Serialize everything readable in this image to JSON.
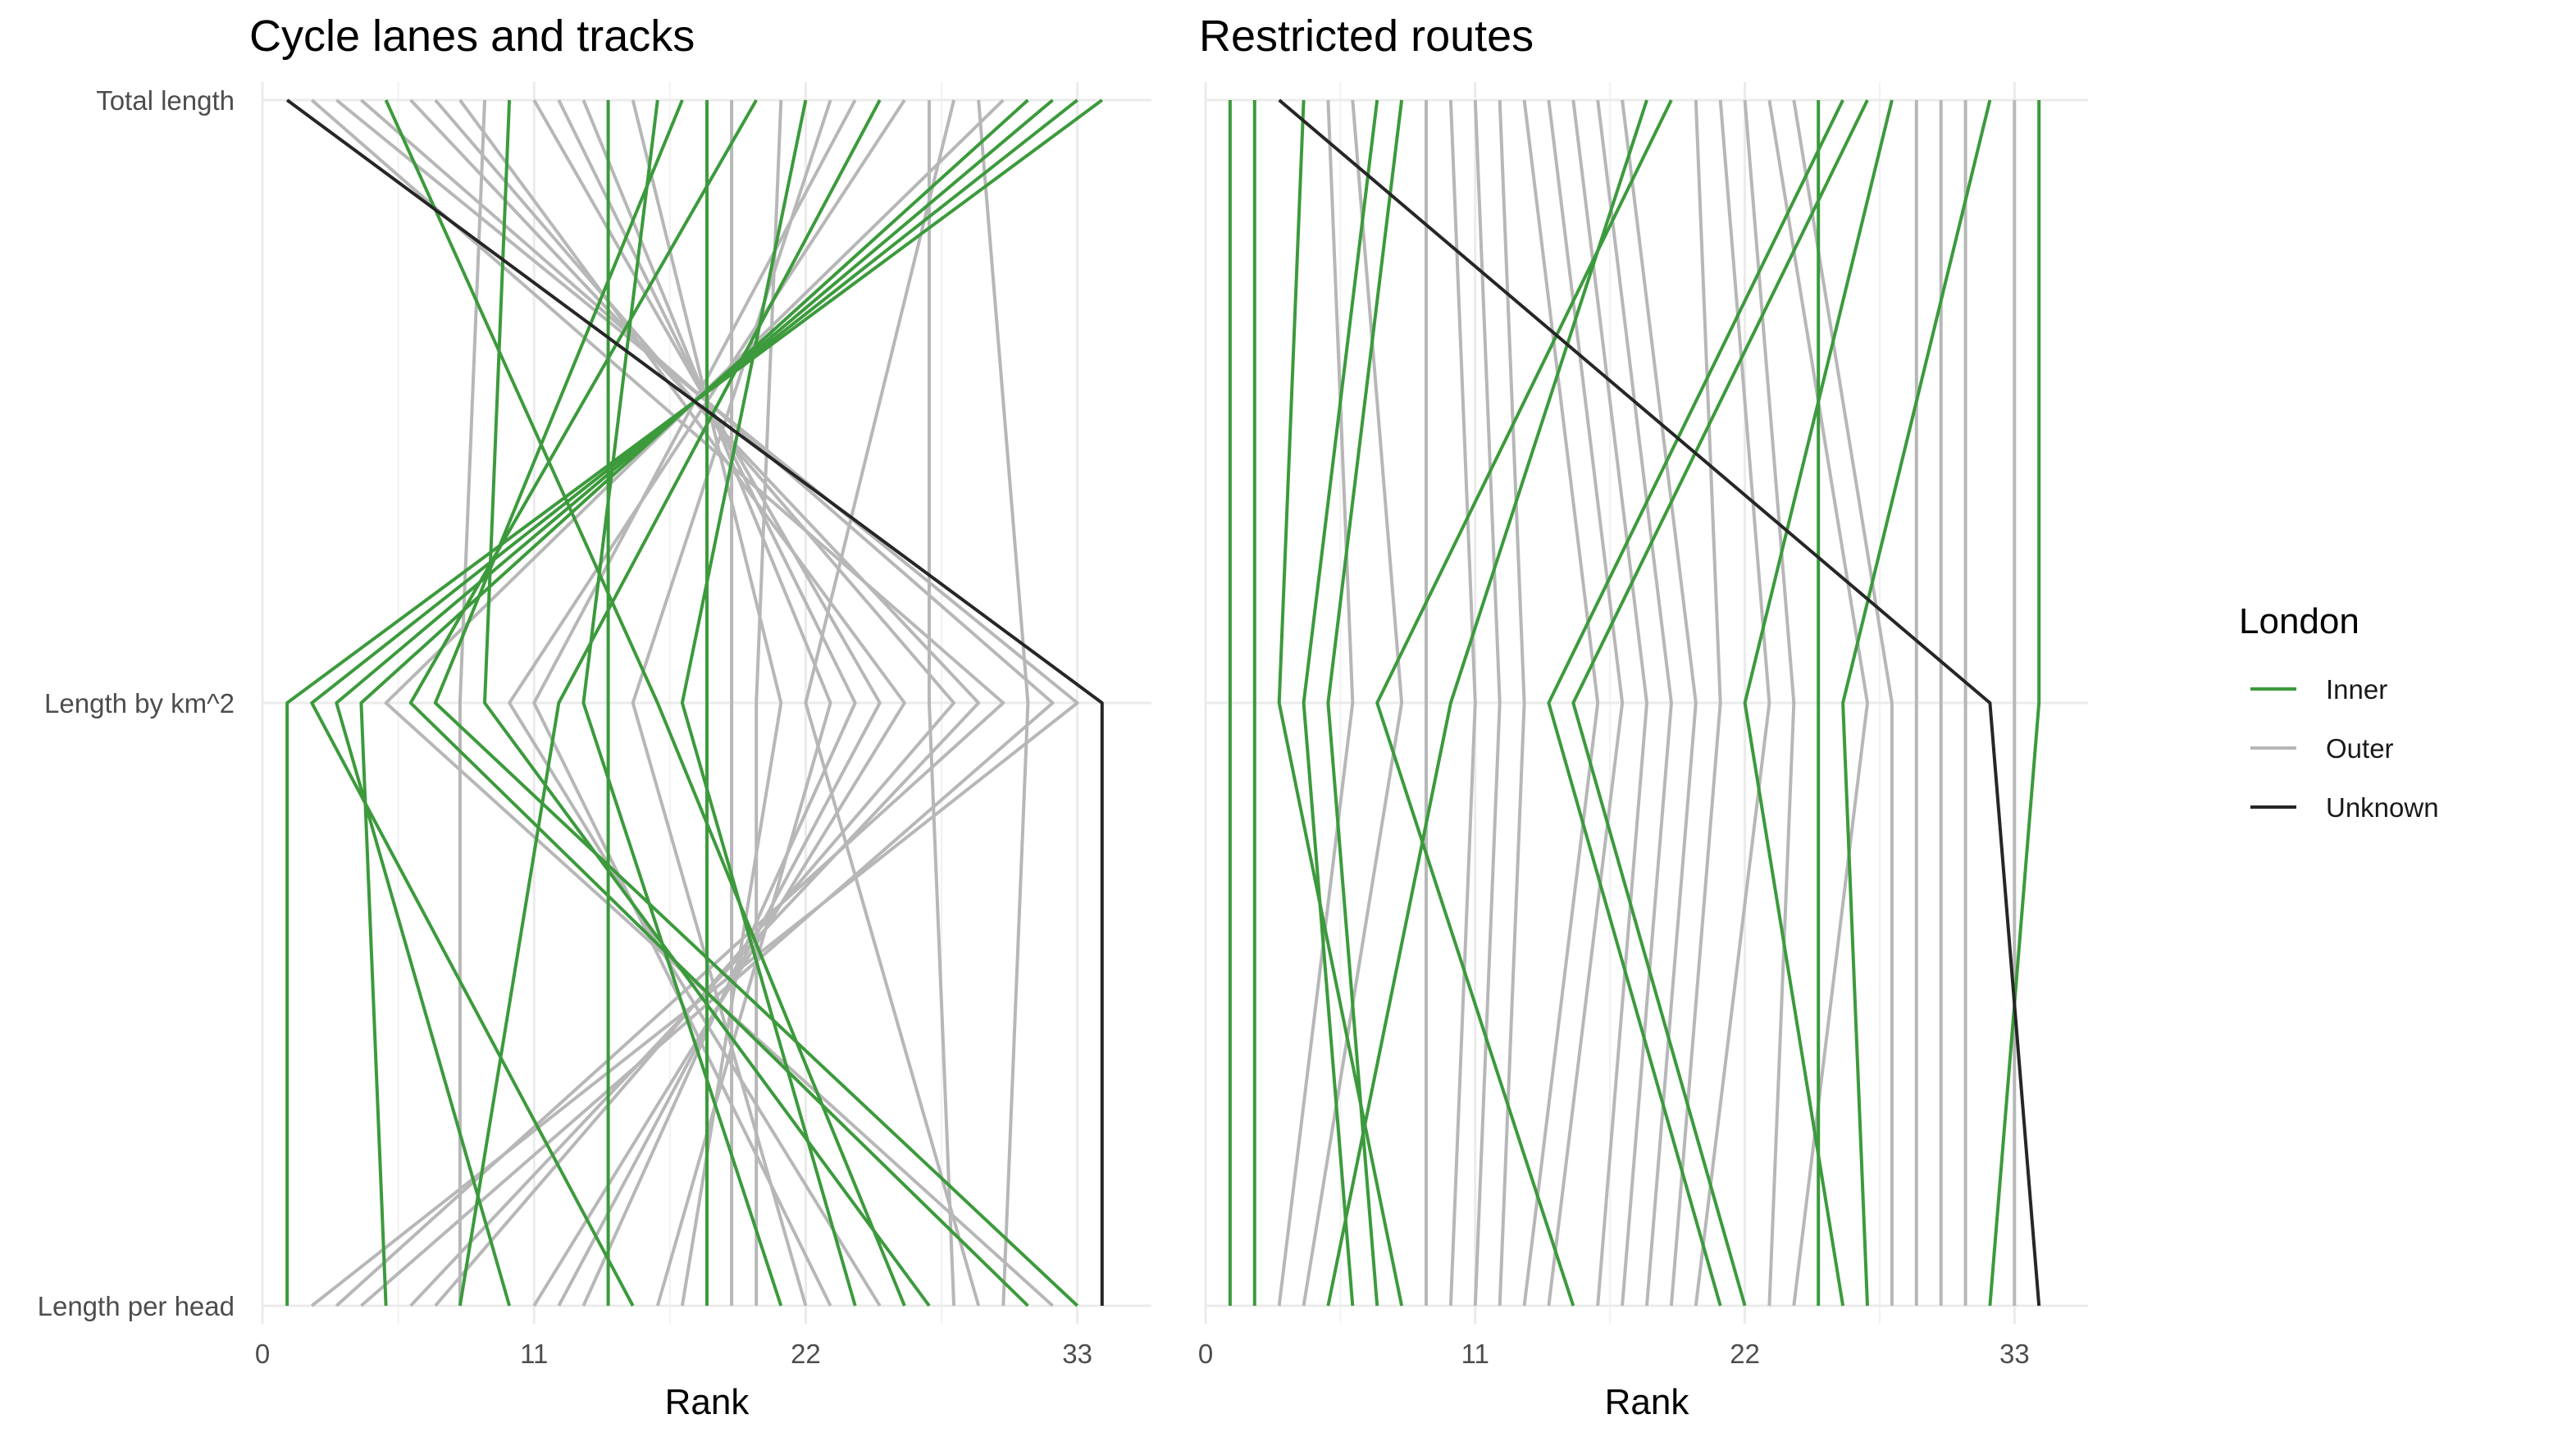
{
  "chart_data": [
    {
      "type": "line",
      "title": "Cycle lanes and tracks",
      "xlabel": "Rank",
      "ylabel": "",
      "xlim": [
        0,
        36
      ],
      "x_ticks": [
        0,
        11,
        22,
        33
      ],
      "categories": [
        "Total length",
        "Length by km^2",
        "Length per head"
      ],
      "grid": true,
      "series": [
        {
          "group": "Unknown",
          "values": [
            1,
            34,
            34
          ]
        },
        {
          "group": "Inner",
          "values": [
            34,
            1,
            1
          ]
        },
        {
          "group": "Inner",
          "values": [
            33,
            2,
            15
          ]
        },
        {
          "group": "Inner",
          "values": [
            32,
            3,
            10
          ]
        },
        {
          "group": "Inner",
          "values": [
            31,
            4,
            5
          ]
        },
        {
          "group": "Inner",
          "values": [
            20,
            6,
            31
          ]
        },
        {
          "group": "Inner",
          "values": [
            17,
            7,
            33
          ]
        },
        {
          "group": "Inner",
          "values": [
            10,
            9,
            27
          ]
        },
        {
          "group": "Inner",
          "values": [
            25,
            12,
            8
          ]
        },
        {
          "group": "Inner",
          "values": [
            16,
            13,
            21
          ]
        },
        {
          "group": "Inner",
          "values": [
            5,
            16,
            26
          ]
        },
        {
          "group": "Inner",
          "values": [
            22,
            17,
            24
          ]
        },
        {
          "group": "Inner",
          "values": [
            18,
            18,
            18
          ]
        },
        {
          "group": "Inner",
          "values": [
            14,
            14,
            14
          ]
        },
        {
          "group": "Outer",
          "values": [
            3,
            33,
            2
          ]
        },
        {
          "group": "Outer",
          "values": [
            2,
            30,
            3
          ]
        },
        {
          "group": "Outer",
          "values": [
            4,
            32,
            4
          ]
        },
        {
          "group": "Outer",
          "values": [
            6,
            29,
            6
          ]
        },
        {
          "group": "Outer",
          "values": [
            7,
            28,
            7
          ]
        },
        {
          "group": "Outer",
          "values": [
            8,
            26,
            11
          ]
        },
        {
          "group": "Outer",
          "values": [
            9,
            8,
            8
          ]
        },
        {
          "group": "Outer",
          "values": [
            11,
            25,
            12
          ]
        },
        {
          "group": "Outer",
          "values": [
            12,
            24,
            13
          ]
        },
        {
          "group": "Outer",
          "values": [
            13,
            23,
            16
          ]
        },
        {
          "group": "Outer",
          "values": [
            15,
            21,
            17
          ]
        },
        {
          "group": "Outer",
          "values": [
            19,
            19,
            19
          ]
        },
        {
          "group": "Outer",
          "values": [
            21,
            20,
            20
          ]
        },
        {
          "group": "Outer",
          "values": [
            23,
            15,
            22
          ]
        },
        {
          "group": "Outer",
          "values": [
            24,
            11,
            23
          ]
        },
        {
          "group": "Outer",
          "values": [
            26,
            10,
            25
          ]
        },
        {
          "group": "Outer",
          "values": [
            27,
            27,
            28
          ]
        },
        {
          "group": "Outer",
          "values": [
            28,
            22,
            29
          ]
        },
        {
          "group": "Outer",
          "values": [
            29,
            31,
            30
          ]
        },
        {
          "group": "Outer",
          "values": [
            30,
            5,
            32
          ]
        }
      ]
    },
    {
      "type": "line",
      "title": "Restricted routes",
      "xlabel": "Rank",
      "ylabel": "",
      "xlim": [
        0,
        36
      ],
      "x_ticks": [
        0,
        11,
        22,
        33
      ],
      "categories": [
        "Total length",
        "Length by km^2",
        "Length per head"
      ],
      "grid": true,
      "series": [
        {
          "group": "Unknown",
          "values": [
            3,
            32,
            34
          ]
        },
        {
          "group": "Inner",
          "values": [
            1,
            1,
            1
          ]
        },
        {
          "group": "Inner",
          "values": [
            2,
            2,
            2
          ]
        },
        {
          "group": "Inner",
          "values": [
            4,
            3,
            8
          ]
        },
        {
          "group": "Inner",
          "values": [
            7,
            4,
            6
          ]
        },
        {
          "group": "Inner",
          "values": [
            18,
            10,
            5
          ]
        },
        {
          "group": "Inner",
          "values": [
            19,
            7,
            15
          ]
        },
        {
          "group": "Inner",
          "values": [
            26,
            14,
            21
          ]
        },
        {
          "group": "Inner",
          "values": [
            27,
            15,
            22
          ]
        },
        {
          "group": "Inner",
          "values": [
            8,
            5,
            7
          ]
        },
        {
          "group": "Inner",
          "values": [
            28,
            22,
            26
          ]
        },
        {
          "group": "Inner",
          "values": [
            25,
            25,
            25
          ]
        },
        {
          "group": "Inner",
          "values": [
            32,
            26,
            27
          ]
        },
        {
          "group": "Inner",
          "values": [
            34,
            34,
            32
          ]
        },
        {
          "group": "Outer",
          "values": [
            5,
            6,
            3
          ]
        },
        {
          "group": "Outer",
          "values": [
            6,
            8,
            4
          ]
        },
        {
          "group": "Outer",
          "values": [
            9,
            9,
            9
          ]
        },
        {
          "group": "Outer",
          "values": [
            10,
            11,
            10
          ]
        },
        {
          "group": "Outer",
          "values": [
            11,
            12,
            11
          ]
        },
        {
          "group": "Outer",
          "values": [
            12,
            13,
            12
          ]
        },
        {
          "group": "Outer",
          "values": [
            13,
            16,
            13
          ]
        },
        {
          "group": "Outer",
          "values": [
            14,
            17,
            14
          ]
        },
        {
          "group": "Outer",
          "values": [
            15,
            18,
            16
          ]
        },
        {
          "group": "Outer",
          "values": [
            16,
            19,
            17
          ]
        },
        {
          "group": "Outer",
          "values": [
            17,
            20,
            18
          ]
        },
        {
          "group": "Outer",
          "values": [
            20,
            21,
            19
          ]
        },
        {
          "group": "Outer",
          "values": [
            21,
            23,
            20
          ]
        },
        {
          "group": "Outer",
          "values": [
            22,
            24,
            23
          ]
        },
        {
          "group": "Outer",
          "values": [
            23,
            27,
            24
          ]
        },
        {
          "group": "Outer",
          "values": [
            24,
            28,
            28
          ]
        },
        {
          "group": "Outer",
          "values": [
            29,
            29,
            29
          ]
        },
        {
          "group": "Outer",
          "values": [
            30,
            30,
            30
          ]
        },
        {
          "group": "Outer",
          "values": [
            31,
            31,
            31
          ]
        },
        {
          "group": "Outer",
          "values": [
            33,
            33,
            33
          ]
        }
      ]
    }
  ],
  "legend": {
    "title": "London",
    "items": [
      {
        "label": "Inner",
        "color": "#3c9a3c"
      },
      {
        "label": "Outer",
        "color": "#b7b7b7"
      },
      {
        "label": "Unknown",
        "color": "#262626"
      }
    ]
  }
}
